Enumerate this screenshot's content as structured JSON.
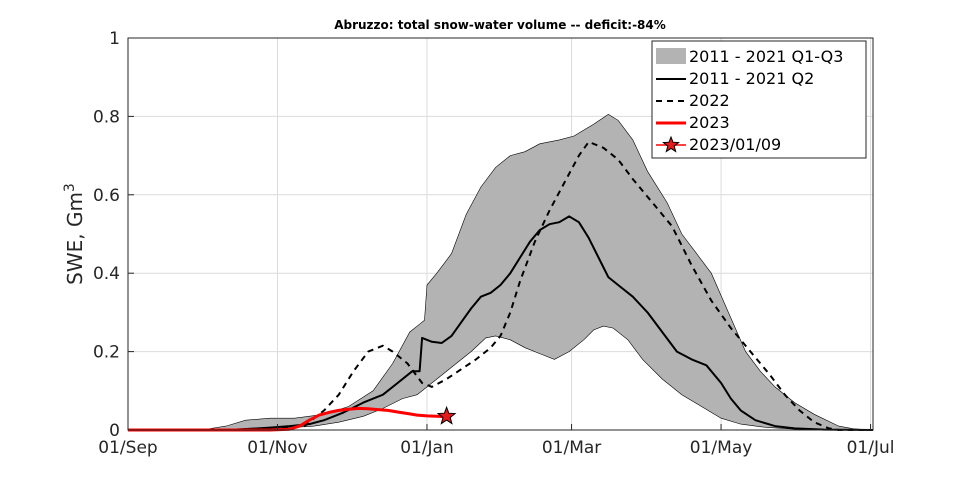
{
  "chart_data": {
    "type": "line",
    "title": "Abruzzo: total snow-water volume -- deficit:-84%",
    "ylabel": "SWE, Gm",
    "ylabel_superscript": "3",
    "xlim": [
      0,
      304
    ],
    "ylim": [
      0,
      1
    ],
    "grid": true,
    "legend_position": "top-right",
    "x_ticks": [
      {
        "day": 0,
        "label": "01/Sep"
      },
      {
        "day": 61,
        "label": "01/Nov"
      },
      {
        "day": 122,
        "label": "01/Jan"
      },
      {
        "day": 181,
        "label": "01/Mar"
      },
      {
        "day": 242,
        "label": "01/May"
      },
      {
        "day": 303,
        "label": "01/Jul"
      }
    ],
    "y_ticks": [
      {
        "value": 0,
        "label": "0"
      },
      {
        "value": 0.2,
        "label": "0.2"
      },
      {
        "value": 0.4,
        "label": "0.4"
      },
      {
        "value": 0.6,
        "label": "0.6"
      },
      {
        "value": 0.8,
        "label": "0.8"
      },
      {
        "value": 1,
        "label": "1"
      }
    ],
    "band": {
      "name": "2011 - 2021 Q1-Q3",
      "color": "#b3b3b3",
      "upper": [
        [
          0,
          0
        ],
        [
          30,
          0
        ],
        [
          40,
          0.01
        ],
        [
          48,
          0.025
        ],
        [
          58,
          0.03
        ],
        [
          68,
          0.03
        ],
        [
          80,
          0.04
        ],
        [
          90,
          0.06
        ],
        [
          100,
          0.1
        ],
        [
          108,
          0.17
        ],
        [
          115,
          0.25
        ],
        [
          119,
          0.27
        ],
        [
          121,
          0.28
        ],
        [
          122,
          0.37
        ],
        [
          126,
          0.4
        ],
        [
          132,
          0.45
        ],
        [
          138,
          0.55
        ],
        [
          144,
          0.62
        ],
        [
          150,
          0.67
        ],
        [
          156,
          0.7
        ],
        [
          162,
          0.71
        ],
        [
          168,
          0.73
        ],
        [
          176,
          0.74
        ],
        [
          182,
          0.75
        ],
        [
          190,
          0.78
        ],
        [
          196,
          0.805
        ],
        [
          200,
          0.79
        ],
        [
          206,
          0.74
        ],
        [
          212,
          0.66
        ],
        [
          220,
          0.58
        ],
        [
          226,
          0.5
        ],
        [
          232,
          0.45
        ],
        [
          238,
          0.4
        ],
        [
          245,
          0.3
        ],
        [
          252,
          0.2
        ],
        [
          258,
          0.15
        ],
        [
          264,
          0.11
        ],
        [
          272,
          0.07
        ],
        [
          280,
          0.04
        ],
        [
          290,
          0.01
        ],
        [
          296,
          0.003
        ],
        [
          304,
          0
        ]
      ],
      "lower": [
        [
          0,
          0
        ],
        [
          50,
          0
        ],
        [
          60,
          0.003
        ],
        [
          68,
          0.007
        ],
        [
          76,
          0.01
        ],
        [
          86,
          0.02
        ],
        [
          96,
          0.035
        ],
        [
          104,
          0.055
        ],
        [
          112,
          0.08
        ],
        [
          118,
          0.09
        ],
        [
          122,
          0.11
        ],
        [
          128,
          0.14
        ],
        [
          134,
          0.17
        ],
        [
          140,
          0.2
        ],
        [
          146,
          0.235
        ],
        [
          150,
          0.24
        ],
        [
          156,
          0.23
        ],
        [
          162,
          0.21
        ],
        [
          168,
          0.195
        ],
        [
          174,
          0.18
        ],
        [
          180,
          0.2
        ],
        [
          186,
          0.23
        ],
        [
          190,
          0.255
        ],
        [
          194,
          0.265
        ],
        [
          198,
          0.26
        ],
        [
          204,
          0.23
        ],
        [
          210,
          0.18
        ],
        [
          218,
          0.13
        ],
        [
          226,
          0.09
        ],
        [
          234,
          0.06
        ],
        [
          242,
          0.03
        ],
        [
          250,
          0.015
        ],
        [
          260,
          0.007
        ],
        [
          270,
          0.003
        ],
        [
          285,
          0
        ],
        [
          304,
          0
        ]
      ]
    },
    "series": [
      {
        "name": "2011 - 2021 Q2",
        "color": "#000000",
        "dash": "solid",
        "points": [
          [
            0,
            0
          ],
          [
            40,
            0
          ],
          [
            50,
            0.003
          ],
          [
            58,
            0.006
          ],
          [
            66,
            0.01
          ],
          [
            74,
            0.015
          ],
          [
            80,
            0.025
          ],
          [
            88,
            0.045
          ],
          [
            96,
            0.07
          ],
          [
            104,
            0.09
          ],
          [
            110,
            0.12
          ],
          [
            116,
            0.15
          ],
          [
            119,
            0.15
          ],
          [
            120,
            0.235
          ],
          [
            124,
            0.225
          ],
          [
            128,
            0.222
          ],
          [
            132,
            0.24
          ],
          [
            136,
            0.275
          ],
          [
            140,
            0.31
          ],
          [
            144,
            0.34
          ],
          [
            148,
            0.35
          ],
          [
            152,
            0.37
          ],
          [
            156,
            0.4
          ],
          [
            160,
            0.44
          ],
          [
            164,
            0.48
          ],
          [
            168,
            0.51
          ],
          [
            172,
            0.525
          ],
          [
            176,
            0.53
          ],
          [
            180,
            0.545
          ],
          [
            184,
            0.53
          ],
          [
            188,
            0.49
          ],
          [
            192,
            0.44
          ],
          [
            196,
            0.39
          ],
          [
            200,
            0.37
          ],
          [
            206,
            0.34
          ],
          [
            212,
            0.3
          ],
          [
            218,
            0.25
          ],
          [
            224,
            0.2
          ],
          [
            230,
            0.18
          ],
          [
            236,
            0.165
          ],
          [
            242,
            0.12
          ],
          [
            246,
            0.08
          ],
          [
            250,
            0.05
          ],
          [
            256,
            0.025
          ],
          [
            264,
            0.01
          ],
          [
            272,
            0.004
          ],
          [
            284,
            0.001
          ],
          [
            304,
            0
          ]
        ]
      },
      {
        "name": "2022",
        "color": "#000000",
        "dash": "dashed",
        "points": [
          [
            0,
            0
          ],
          [
            40,
            0
          ],
          [
            60,
            0.002
          ],
          [
            72,
            0.01
          ],
          [
            80,
            0.05
          ],
          [
            86,
            0.09
          ],
          [
            92,
            0.15
          ],
          [
            98,
            0.2
          ],
          [
            104,
            0.215
          ],
          [
            108,
            0.2
          ],
          [
            114,
            0.17
          ],
          [
            120,
            0.12
          ],
          [
            124,
            0.11
          ],
          [
            130,
            0.13
          ],
          [
            136,
            0.155
          ],
          [
            142,
            0.18
          ],
          [
            148,
            0.21
          ],
          [
            152,
            0.24
          ],
          [
            156,
            0.3
          ],
          [
            160,
            0.38
          ],
          [
            166,
            0.48
          ],
          [
            172,
            0.56
          ],
          [
            178,
            0.63
          ],
          [
            184,
            0.7
          ],
          [
            188,
            0.735
          ],
          [
            194,
            0.72
          ],
          [
            200,
            0.69
          ],
          [
            206,
            0.64
          ],
          [
            214,
            0.58
          ],
          [
            222,
            0.52
          ],
          [
            230,
            0.42
          ],
          [
            238,
            0.33
          ],
          [
            246,
            0.26
          ],
          [
            254,
            0.2
          ],
          [
            262,
            0.14
          ],
          [
            268,
            0.09
          ],
          [
            274,
            0.05
          ],
          [
            280,
            0.02
          ],
          [
            286,
            0.004
          ],
          [
            290,
            0
          ],
          [
            304,
            0
          ]
        ]
      },
      {
        "name": "2023",
        "color": "#ff0000",
        "dash": "solid",
        "points": [
          [
            0,
            0
          ],
          [
            58,
            0
          ],
          [
            66,
            0.002
          ],
          [
            70,
            0.01
          ],
          [
            74,
            0.025
          ],
          [
            78,
            0.038
          ],
          [
            82,
            0.045
          ],
          [
            86,
            0.05
          ],
          [
            90,
            0.053
          ],
          [
            94,
            0.055
          ],
          [
            98,
            0.054
          ],
          [
            102,
            0.052
          ],
          [
            106,
            0.05
          ],
          [
            110,
            0.046
          ],
          [
            114,
            0.042
          ],
          [
            118,
            0.038
          ],
          [
            122,
            0.036
          ],
          [
            126,
            0.035
          ],
          [
            130,
            0.034
          ]
        ]
      }
    ],
    "marker": {
      "name": "2023/01/09",
      "x": 130,
      "y": 0.035,
      "color": "#e41a1c"
    }
  }
}
